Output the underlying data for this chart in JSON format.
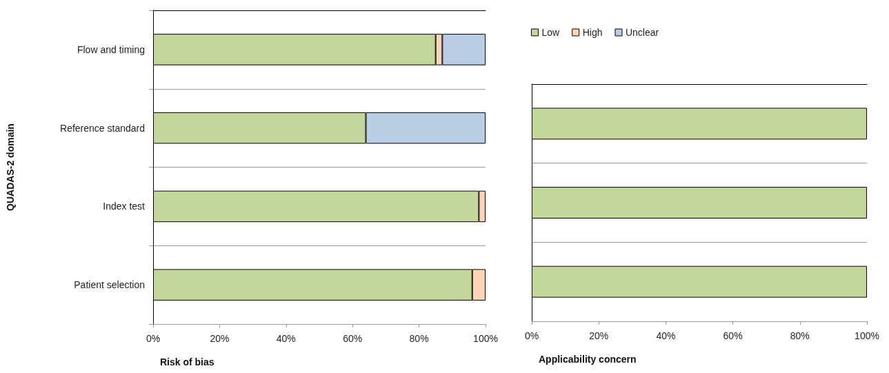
{
  "chart_data": [
    {
      "type": "bar",
      "orientation": "horizontal",
      "stacked": true,
      "ylabel": "QUADAS-2 domain",
      "xlabel": "Risk of bias",
      "categories": [
        "Flow and timing",
        "Reference standard",
        "Index test",
        "Patient selection"
      ],
      "series": [
        {
          "color": "#c4d79b",
          "values": [
            85,
            64,
            98,
            96
          ]
        },
        {
          "color": "#fcd5b5",
          "values": [
            2,
            null,
            2,
            4
          ]
        },
        {
          "color": "#b9cde5",
          "values": [
            13,
            36,
            null,
            null
          ]
        }
      ],
      "xlim": [
        0,
        100
      ],
      "xticks": [
        {
          "value": 0,
          "label": "0%"
        },
        {
          "value": 20,
          "label": "20%"
        },
        {
          "value": 40,
          "label": "40%"
        },
        {
          "value": 60,
          "label": "60%"
        },
        {
          "value": 80,
          "label": "80%"
        },
        {
          "value": 100,
          "label": "100%"
        }
      ],
      "grid": "y",
      "legend": false
    },
    {
      "type": "bar",
      "orientation": "horizontal",
      "stacked": true,
      "xlabel": "Applicability concern",
      "categories": [
        null,
        null,
        null
      ],
      "series": [
        {
          "name": "Low",
          "color": "#c4d79b",
          "values": [
            100,
            100,
            100
          ]
        },
        {
          "name": "High",
          "color": "#fcd5b5",
          "values": [
            null,
            null,
            null
          ]
        },
        {
          "name": "Unclear",
          "color": "#b9cde5",
          "values": [
            null,
            null,
            null
          ]
        }
      ],
      "xlim": [
        0,
        100
      ],
      "xticks": [
        {
          "value": 0,
          "label": "0%"
        },
        {
          "value": 20,
          "label": "20%"
        },
        {
          "value": 40,
          "label": "40%"
        },
        {
          "value": 60,
          "label": "60%"
        },
        {
          "value": 80,
          "label": "80%"
        },
        {
          "value": 100,
          "label": "100%"
        }
      ],
      "grid": "y",
      "legend": "top left"
    }
  ]
}
